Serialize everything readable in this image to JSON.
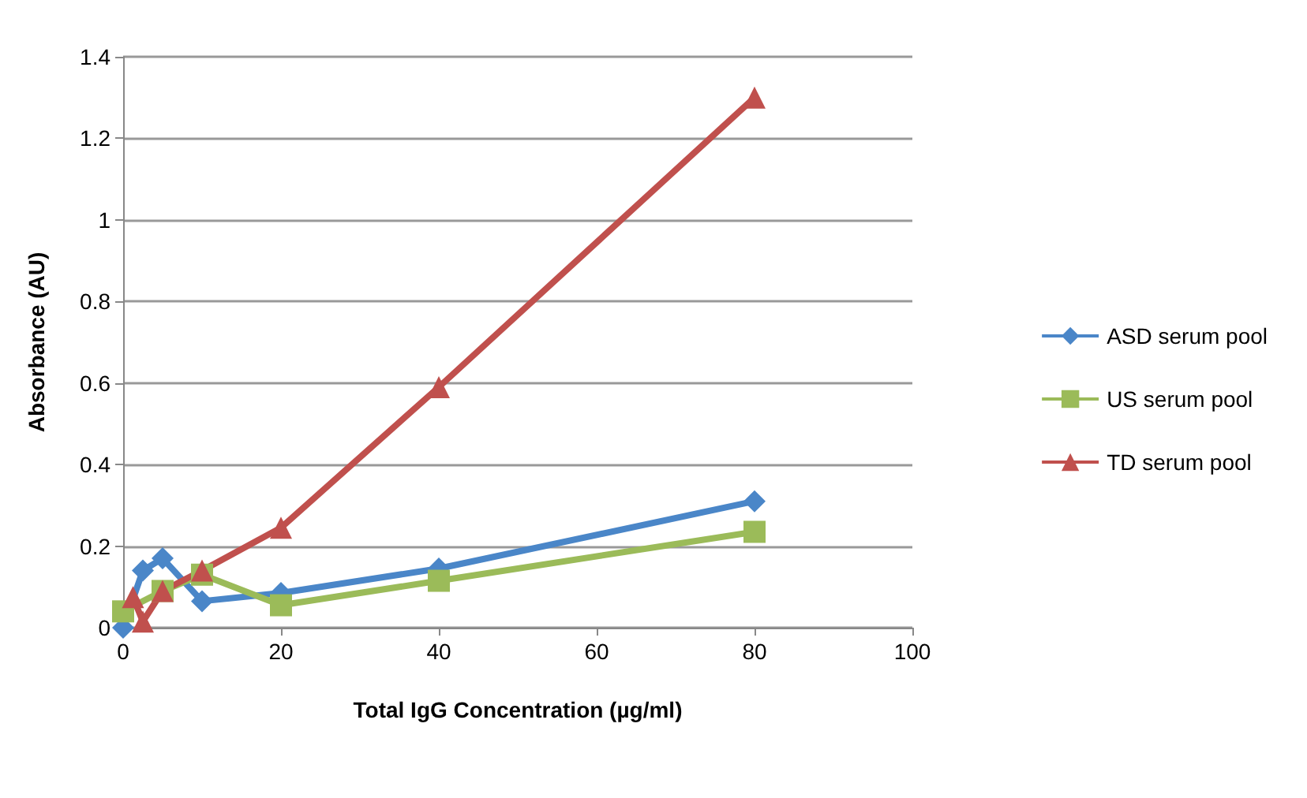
{
  "chart_data": {
    "type": "line",
    "xlabel": "Total IgG Concentration (µg/ml)",
    "ylabel": "Absorbance (AU)",
    "xlim": [
      0,
      100
    ],
    "xticks": [
      0,
      20,
      40,
      60,
      80,
      100
    ],
    "ylim": [
      0,
      1.4
    ],
    "yticks": [
      0,
      0.2,
      0.4,
      0.6,
      0.8,
      1,
      1.2,
      1.4
    ],
    "grid": "y",
    "legend": "right",
    "series": [
      {
        "name": "ASD serum pool",
        "color": "#4a86c8",
        "marker": "diamond",
        "x": [
          0,
          2.5,
          5,
          10,
          20,
          40,
          80
        ],
        "values": [
          0.0,
          0.14,
          0.17,
          0.065,
          0.085,
          0.145,
          0.31
        ]
      },
      {
        "name": "US serum pool",
        "color": "#9bbb59",
        "marker": "square",
        "x": [
          0,
          5,
          10,
          20,
          40,
          80
        ],
        "values": [
          0.04,
          0.09,
          0.13,
          0.055,
          0.115,
          0.235
        ]
      },
      {
        "name": "TD serum pool",
        "color": "#c0504d",
        "marker": "triangle",
        "x": [
          1.25,
          2.5,
          5,
          10,
          20,
          40,
          80
        ],
        "values": [
          0.075,
          0.015,
          0.09,
          0.14,
          0.245,
          0.59,
          1.3
        ]
      }
    ]
  }
}
